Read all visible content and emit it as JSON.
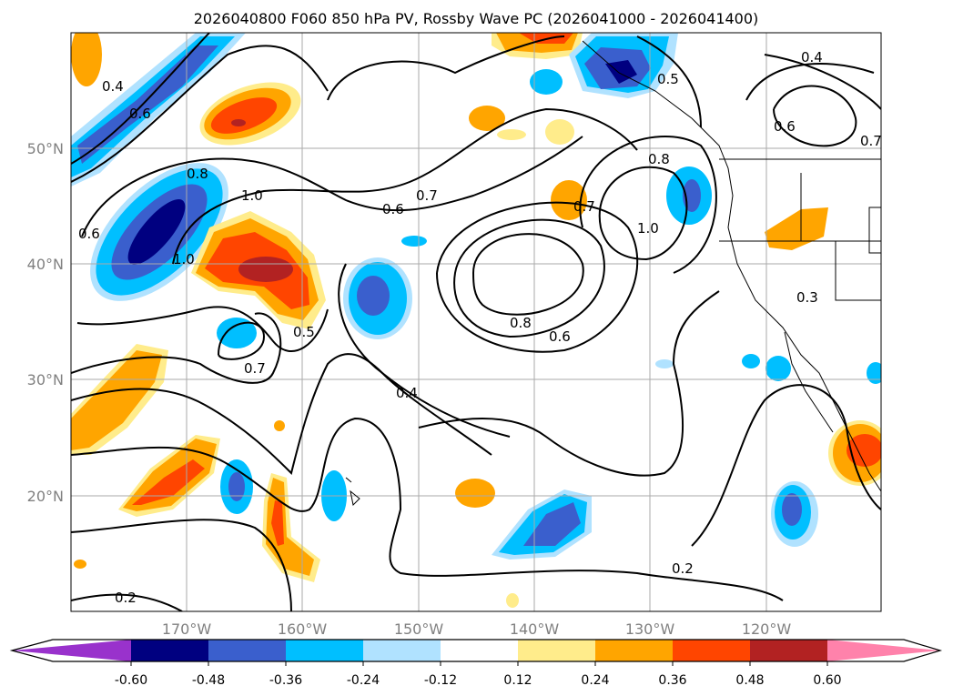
{
  "title": "2026040800 F060 850 hPa PV, Rossby Wave PC (2026041000 - 2026041400)",
  "map": {
    "extent": {
      "lon": [
        -180,
        -110
      ],
      "lat": [
        10,
        60
      ]
    },
    "lon_labels": [
      "170°W",
      "160°W",
      "150°W",
      "140°W",
      "130°W",
      "120°W"
    ],
    "lat_labels": [
      "50°N",
      "40°N",
      "30°N",
      "20°N"
    ],
    "contour_labels": [
      "0.4",
      "0.6",
      "0.8",
      "1.0",
      "0.6",
      "1.0",
      "0.6",
      "0.7",
      "0.5",
      "0.7",
      "0.4",
      "0.8",
      "0.6",
      "0.8",
      "0.7",
      "1.0",
      "0.5",
      "0.4",
      "0.6",
      "0.7",
      "0.3",
      "0.2",
      "0.2"
    ]
  },
  "colorbar": {
    "ticks": [
      "-0.60",
      "-0.48",
      "-0.36",
      "-0.24",
      "-0.12",
      "0.12",
      "0.24",
      "0.36",
      "0.48",
      "0.60"
    ],
    "colors": [
      "#9932cc",
      "#000080",
      "#3a5fcd",
      "#00bfff",
      "#b0e2ff",
      "#ffffff",
      "#ffec8b",
      "#ffa500",
      "#ff4500",
      "#b22222",
      "#ff82ab"
    ]
  }
}
